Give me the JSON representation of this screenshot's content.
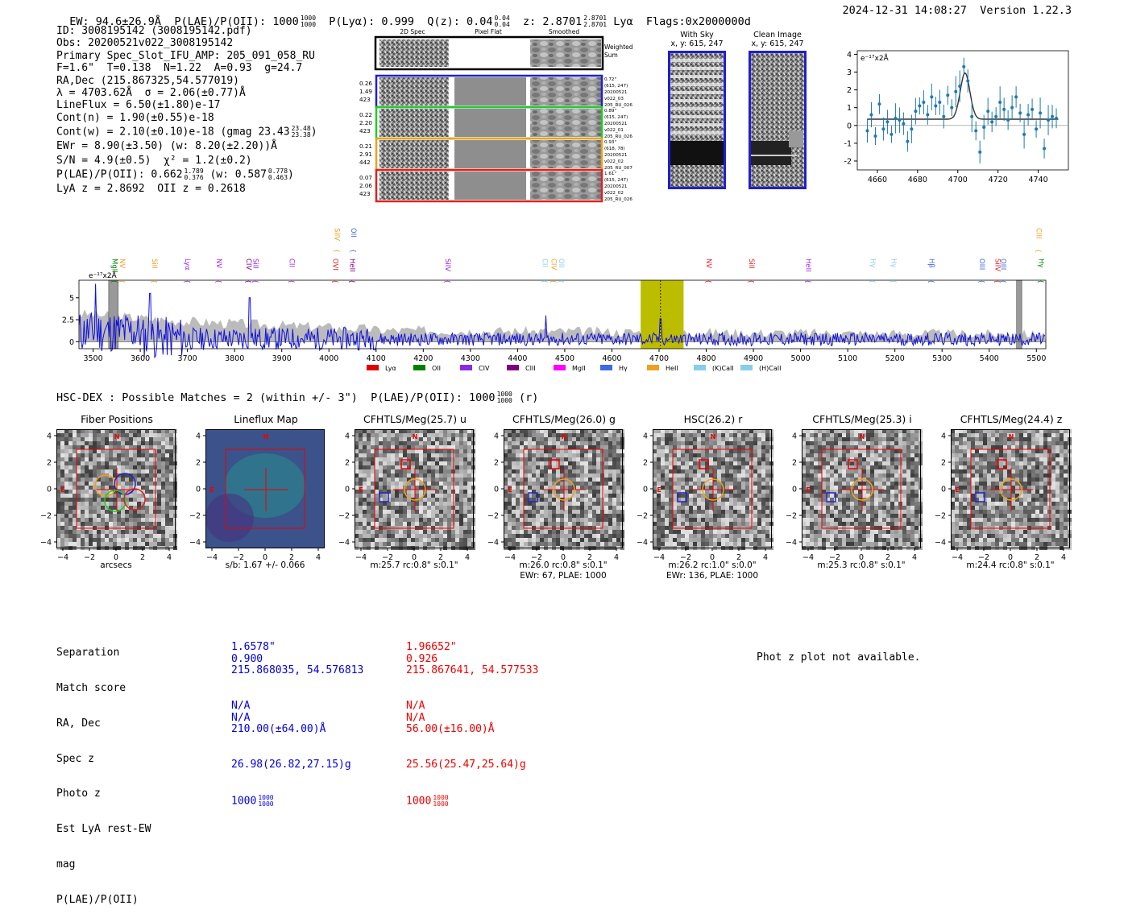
{
  "header": {
    "ew": "EW: 94.6±26.9Å",
    "plae_label": "P(LAE)/P(OII): 1000",
    "plae_hi": "1000",
    "plae_lo": "1000",
    "plya": "P(Lyα): 0.999",
    "qz_label": "Q(z): 0.04",
    "qz_hi": "0.04",
    "qz_lo": "0.04",
    "z_label": "z: 2.8701",
    "z_hi": "2.8701",
    "z_lo": "2.8701",
    "lya_flags": "Lyα  Flags:0x2000000d",
    "timestamp": "2024-12-31 14:08:27",
    "version": "Version 1.22.3"
  },
  "info": {
    "id": "ID: 3008195142 (3008195142.pdf)",
    "obs": "Obs: 20200521v022_3008195142",
    "primary": "Primary Spec_Slot_IFU_AMP: 205_091_058_RU",
    "params": "F=1.6\"  T=0.138  N=1.22  A=0.93  g=24.7",
    "radec": "RA,Dec (215.867325,54.577019)",
    "lambda": "λ = 4703.62Å  σ = 2.06(±0.77)Å",
    "lineflux": "LineFlux = 6.50(±1.80)e-17",
    "contn": "Cont(n) = 1.90(±0.55)e-18",
    "contw": "Cont(w) = 2.10(±0.10)e-18 (gmag 23.43",
    "contw_hi": "23.48",
    "contw_lo": "23.38",
    "contw_end": ")",
    "ewr": "EWr = 8.90(±3.50) (w: 8.20(±2.20))Å",
    "sn": "S/N = 4.9(±0.5)  χ² = 1.2(±0.2)",
    "plae": "P(LAE)/P(OII): 0.662",
    "plae_hi": "1.789",
    "plae_lo": "0.376",
    "plae_w": "(w: 0.587",
    "plae_w_hi": "0.778",
    "plae_w_lo": "0.463",
    "plae_end": ")",
    "lyaz": "LyA z = 2.8692  OII z = 0.2618"
  },
  "cutout_panel": {
    "col_titles": [
      "2D Spec",
      "Pixel Flat",
      "Smoothed"
    ],
    "weighted": [
      "Weighted",
      "Sum"
    ],
    "rows": [
      {
        "left": [
          "0.26",
          "1.49",
          "423"
        ],
        "right": [
          "0.72\"",
          "(615, 247)",
          "20200521",
          "v022_03",
          "205_RU_026"
        ],
        "color": "#1f1fcf"
      },
      {
        "left": [
          "0.22",
          "2.20",
          "423"
        ],
        "right": [
          "0.89\"",
          "(615, 247)",
          "20200521",
          "v022_01",
          "205_RU_026"
        ],
        "color": "#22cc22"
      },
      {
        "left": [
          "0.21",
          "2.91",
          "442"
        ],
        "right": [
          "0.93\"",
          "(618, 78)",
          "20200521",
          "v022_02",
          "205_RU_007"
        ],
        "color": "#f0a020"
      },
      {
        "left": [
          "0.07",
          "2.06",
          "423"
        ],
        "right": [
          "1.61\"",
          "(615, 247)",
          "20200521",
          "v022_02",
          "205_RU_026"
        ],
        "color": "#e02020"
      }
    ]
  },
  "sky": {
    "with_sky": [
      "With Sky",
      "x, y: 615, 247"
    ],
    "clean": [
      "Clean Image",
      "x, y: 615, 247"
    ]
  },
  "zoom_plot": {
    "unit": "e⁻¹⁷x2Å",
    "xticks": [
      4660,
      4680,
      4700,
      4720,
      4740
    ],
    "yticks": [
      4,
      3,
      2,
      1,
      0,
      -1,
      -2
    ],
    "xlim": [
      4650,
      4755
    ],
    "ylim": [
      -2.5,
      4.2
    ],
    "points": [
      [
        4655,
        -0.3
      ],
      [
        4657,
        0.6
      ],
      [
        4659,
        -0.6
      ],
      [
        4661,
        1.2
      ],
      [
        4663,
        -0.2
      ],
      [
        4665,
        0.2
      ],
      [
        4667,
        -0.5
      ],
      [
        4669,
        0.4
      ],
      [
        4671,
        0.3
      ],
      [
        4673,
        0.1
      ],
      [
        4675,
        -0.9
      ],
      [
        4677,
        -0.2
      ],
      [
        4679,
        0.8
      ],
      [
        4681,
        1.1
      ],
      [
        4683,
        1.3
      ],
      [
        4685,
        0.6
      ],
      [
        4687,
        1.6
      ],
      [
        4689,
        1.1
      ],
      [
        4691,
        1.3
      ],
      [
        4693,
        0.5
      ],
      [
        4695,
        1.7
      ],
      [
        4697,
        1.0
      ],
      [
        4699,
        1.9
      ],
      [
        4701,
        2.2
      ],
      [
        4703,
        3.3
      ],
      [
        4705,
        2.5
      ],
      [
        4707,
        0.5
      ],
      [
        4709,
        -0.3
      ],
      [
        4711,
        -1.5
      ],
      [
        4713,
        -0.1
      ],
      [
        4715,
        0.8
      ],
      [
        4717,
        0.2
      ],
      [
        4719,
        0.5
      ],
      [
        4721,
        1.3
      ],
      [
        4723,
        0.9
      ],
      [
        4725,
        0.3
      ],
      [
        4727,
        1.0
      ],
      [
        4729,
        1.6
      ],
      [
        4731,
        0.7
      ],
      [
        4733,
        -0.5
      ],
      [
        4735,
        0.6
      ],
      [
        4737,
        0.9
      ],
      [
        4739,
        -0.2
      ],
      [
        4741,
        0.7
      ],
      [
        4743,
        -1.3
      ],
      [
        4745,
        0.3
      ],
      [
        4747,
        0.5
      ],
      [
        4749,
        0.4
      ]
    ]
  },
  "spectrum": {
    "unit": "e⁻¹⁷x2Å",
    "xlim": [
      3470,
      5520
    ],
    "ylim": [
      -0.8,
      7.0
    ],
    "xticks": [
      3500,
      3600,
      3700,
      3800,
      3900,
      4000,
      4100,
      4200,
      4300,
      4400,
      4500,
      4600,
      4700,
      4800,
      4900,
      5000,
      5100,
      5200,
      5300,
      5400,
      5500
    ],
    "yticks": [
      5.0,
      2.5,
      0.0
    ],
    "highlight": [
      4661,
      4752
    ],
    "line_at": 4703,
    "grey_bands": [
      [
        3533,
        3553
      ],
      [
        5458,
        5469
      ]
    ],
    "labels": [
      {
        "t": "MgII",
        "x": 3536,
        "c": "#008000",
        "row": 0
      },
      {
        "t": "NV",
        "x": 3552,
        "c": "#f0a020",
        "row": 0
      },
      {
        "t": "SiII",
        "x": 3620,
        "c": "#f0a020",
        "row": 0
      },
      {
        "t": "Lyα",
        "x": 3690,
        "c": "#a020f0",
        "row": 0
      },
      {
        "t": "NV",
        "x": 3757,
        "c": "#a020f0",
        "row": 0
      },
      {
        "t": "CIV",
        "x": 3820,
        "c": "#800080",
        "row": 0
      },
      {
        "t": "SiII",
        "x": 3835,
        "c": "#a020f0",
        "row": 0
      },
      {
        "t": "CII",
        "x": 3912,
        "c": "#a020f0",
        "row": 0
      },
      {
        "t": "OVI",
        "x": 4004,
        "c": "#e02020",
        "row": 0
      },
      {
        "t": "HeII",
        "x": 4040,
        "c": "#800080",
        "row": 0
      },
      {
        "t": "SiIV",
        "x": 4242,
        "c": "#a020f0",
        "row": 0
      },
      {
        "t": "CII",
        "x": 4448,
        "c": "#87ceeb",
        "row": 0
      },
      {
        "t": "CIV",
        "x": 4467,
        "c": "#f0a020",
        "row": 0
      },
      {
        "t": "OII",
        "x": 4483,
        "c": "#87ceeb",
        "row": 0
      },
      {
        "t": "NV",
        "x": 4796,
        "c": "#e02020",
        "row": 0
      },
      {
        "t": "SiII",
        "x": 4886,
        "c": "#e02020",
        "row": 0
      },
      {
        "t": "HeII",
        "x": 5007,
        "c": "#a020f0",
        "row": 0
      },
      {
        "t": "Hγ",
        "x": 5143,
        "c": "#87ceeb",
        "row": 0
      },
      {
        "t": "Hγ",
        "x": 5188,
        "c": "#87ceeb",
        "row": 0
      },
      {
        "t": "Hβ",
        "x": 5268,
        "c": "#4169e1",
        "row": 0
      },
      {
        "t": "OIII",
        "x": 5375,
        "c": "#4169e1",
        "row": 0
      },
      {
        "t": "SiIV",
        "x": 5408,
        "c": "#e02020",
        "row": 0
      },
      {
        "t": "OIII",
        "x": 5420,
        "c": "#4169e1",
        "row": 0
      },
      {
        "t": "Hγ",
        "x": 5500,
        "c": "#008000",
        "row": 0
      },
      {
        "t": "SiIV",
        "x": 4007,
        "c": "#f0a020",
        "row": 1
      },
      {
        "t": "OII",
        "x": 4042,
        "c": "#4169e1",
        "row": 1
      },
      {
        "t": "CIII",
        "x": 5495,
        "c": "#f0a020",
        "row": 1
      }
    ],
    "legend": [
      {
        "t": "Lyα",
        "c": "#e00000"
      },
      {
        "t": "OII",
        "c": "#008000"
      },
      {
        "t": "CIV",
        "c": "#8a2be2"
      },
      {
        "t": "CIII",
        "c": "#800080"
      },
      {
        "t": "MgII",
        "c": "#ff00ff"
      },
      {
        "t": "Hγ",
        "c": "#4169e1"
      },
      {
        "t": "HeII",
        "c": "#f0a020"
      },
      {
        "t": "(K)CaII",
        "c": "#87ceeb"
      },
      {
        "t": "(H)CaII",
        "c": "#87ceeb"
      }
    ]
  },
  "hsc": {
    "title": "HSC-DEX : Possible Matches = 2 (within +/- 3\")  P(LAE)/P(OII): 1000",
    "frac_hi": "1000",
    "frac_lo": "1000",
    "suffix": "(r)"
  },
  "cutouts": [
    {
      "title": "Fiber Positions",
      "cap1": "arcsecs",
      "cap2": ""
    },
    {
      "title": "Lineflux Map",
      "cap1": "s/b: 1.67 +/- 0.066",
      "cap2": ""
    },
    {
      "title": "CFHTLS/Meg(25.7) u",
      "cap1": "m:25.7 rc:0.8\"  s:0.1\"",
      "cap2": ""
    },
    {
      "title": "CFHTLS/Meg(26.0) g",
      "cap1": "m:26.0 rc:0.8\"  s:0.1\"",
      "cap2": "EWr: 67, PLAE: 1000"
    },
    {
      "title": "HSC(26.2) r",
      "cap1": "m:26.2 rc:1.0\"  s:0.0\"",
      "cap2": "EWr: 136, PLAE: 1000"
    },
    {
      "title": "CFHTLS/Meg(25.3) i",
      "cap1": "m:25.3 rc:0.8\"  s:0.1\"",
      "cap2": ""
    },
    {
      "title": "CFHTLS/Meg(24.4) z",
      "cap1": "m:24.4 rc:0.8\"  s:0.1\"",
      "cap2": ""
    }
  ],
  "cutout_ticks": [
    "4",
    "2",
    "0",
    "−2",
    "−4"
  ],
  "cutout_xticks": [
    "−4",
    "−2",
    "0",
    "2",
    "4"
  ],
  "compass": {
    "n": "N",
    "e": "E"
  },
  "table": {
    "labels": [
      "Separation",
      "Match score",
      "RA, Dec",
      "Spec z",
      "Photo z",
      "Est LyA rest-EW",
      "mag",
      "P(LAE)/P(OII)"
    ],
    "col1": [
      "1.6578\"",
      "0.900",
      "215.868035, 54.576813",
      "N/A",
      "N/A",
      "210.00(±64.00)Å",
      "26.98(26.82,27.15)g",
      "1000"
    ],
    "col1_frac": [
      "1000",
      "1000"
    ],
    "col2": [
      "1.96652\"",
      "0.926",
      "215.867641, 54.577533",
      "N/A",
      "N/A",
      "56.00(±16.00)Å",
      "25.56(25.47,25.64)g",
      "1000"
    ],
    "col2_frac": [
      "1000",
      "1000"
    ],
    "col1_color": "#0000dd",
    "col2_color": "#ee0000"
  },
  "photz_note": "Phot z plot not available."
}
